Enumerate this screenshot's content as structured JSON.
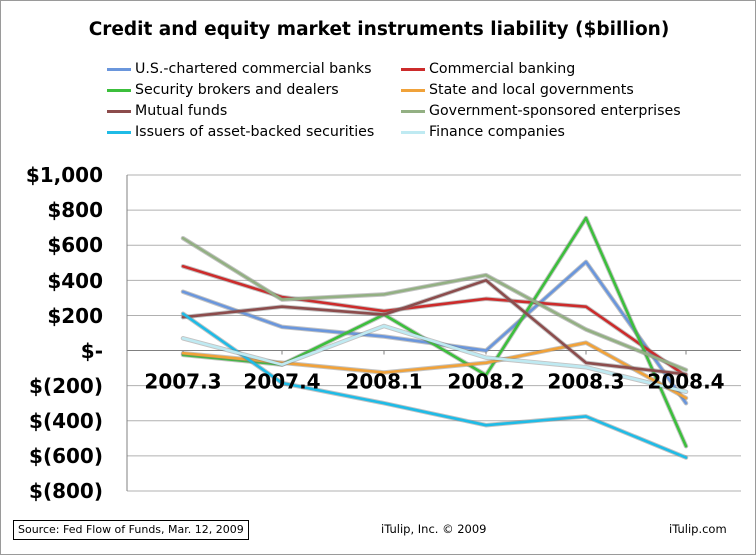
{
  "chart_data": {
    "type": "line",
    "title": "Credit and equity market instruments liability ($billion)",
    "categories": [
      "2007.3",
      "2007.4",
      "2008.1",
      "2008.2",
      "2008.3",
      "2008.4"
    ],
    "ylim": [
      -800,
      1000
    ],
    "yticks": [
      1000,
      800,
      600,
      400,
      200,
      0,
      -200,
      -400,
      -600,
      -800
    ],
    "ytick_labels": [
      "$1,000",
      "$800",
      "$600",
      "$400",
      "$200",
      "$-",
      "$(200)",
      "$(400)",
      "$(600)",
      "$(800)"
    ],
    "grid": true,
    "legend_position": "top",
    "series": [
      {
        "name": "U.S.-chartered commercial banks",
        "color": "#6a96dc",
        "values": [
          335,
          135,
          80,
          0,
          505,
          -300
        ]
      },
      {
        "name": "Commercial banking",
        "color": "#cc2b2b",
        "values": [
          480,
          305,
          225,
          295,
          250,
          -145
        ]
      },
      {
        "name": "Security brokers and dealers",
        "color": "#3cbf3c",
        "values": [
          -25,
          -80,
          205,
          -140,
          755,
          -545
        ]
      },
      {
        "name": "State and local governments",
        "color": "#f0a23a",
        "values": [
          -15,
          -70,
          -125,
          -70,
          45,
          -270
        ]
      },
      {
        "name": "Mutual funds",
        "color": "#8c4c4c",
        "values": [
          190,
          250,
          205,
          400,
          -70,
          -135
        ]
      },
      {
        "name": "Government-sponsored enterprises",
        "color": "#93b083",
        "values": [
          640,
          290,
          320,
          430,
          120,
          -110
        ]
      },
      {
        "name": "Issuers of asset-backed securities",
        "color": "#1fbbe6",
        "values": [
          210,
          -185,
          -300,
          -425,
          -375,
          -610
        ]
      },
      {
        "name": "Finance companies",
        "color": "#bfeaf2",
        "values": [
          70,
          -80,
          140,
          -40,
          -95,
          -235
        ]
      }
    ]
  },
  "footer": {
    "source": "Source: Fed Flow of Funds, Mar. 12, 2009",
    "copyright": "iTulip, Inc. © 2009",
    "site": "iTulip.com"
  }
}
